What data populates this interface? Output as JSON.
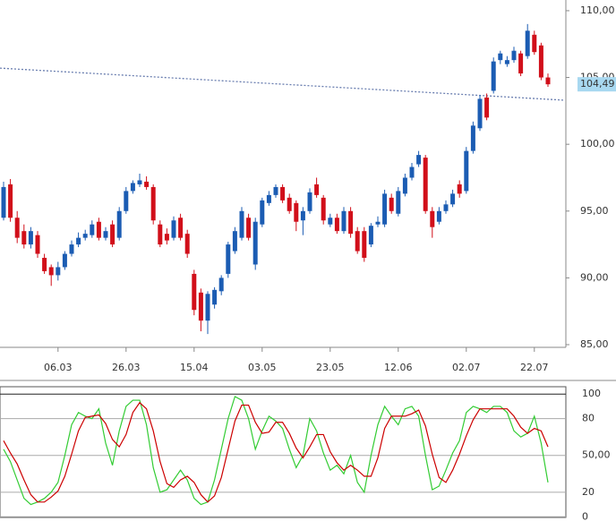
{
  "chart_data": [
    {
      "type": "candlestick",
      "categories": [
        null,
        null,
        null,
        null,
        null,
        null,
        null,
        null,
        "06.03",
        null,
        null,
        null,
        null,
        null,
        null,
        null,
        null,
        null,
        "26.03",
        null,
        null,
        null,
        null,
        null,
        null,
        null,
        null,
        null,
        "15.04",
        null,
        null,
        null,
        null,
        null,
        null,
        null,
        null,
        null,
        "03.05",
        null,
        null,
        null,
        null,
        null,
        null,
        null,
        null,
        null,
        "23.05",
        null,
        null,
        null,
        null,
        null,
        null,
        null,
        null,
        null,
        "12.06",
        null,
        null,
        null,
        null,
        null,
        null,
        null,
        null,
        null,
        "02.07",
        null,
        null,
        null,
        null,
        null,
        null,
        null,
        null,
        null,
        "22.07",
        null,
        null
      ],
      "open": [
        94.5,
        97,
        94.5,
        93.5,
        92.5,
        93.2,
        91.5,
        90.8,
        90.2,
        90.8,
        91.8,
        92.5,
        93,
        93.2,
        94.2,
        93,
        94,
        93,
        95,
        96.5,
        97,
        97.2,
        96.8,
        94,
        93.3,
        93,
        94.5,
        93.3,
        90.3,
        88.9,
        86.8,
        88,
        89,
        90.3,
        92,
        93,
        94.5,
        91,
        94,
        95.6,
        96.2,
        96.8,
        96,
        95.6,
        94.3,
        95,
        97,
        96,
        94,
        94.5,
        93.5,
        95,
        93.5,
        93.5,
        92.5,
        94,
        94,
        96,
        94.8,
        96.3,
        97.5,
        98.5,
        99,
        95,
        94.2,
        95,
        95.5,
        97,
        96.5,
        99.5,
        101.2,
        103.5,
        104,
        106.3,
        106,
        106.3,
        106.8,
        106.6,
        108.2,
        107.4,
        105
      ],
      "high": [
        97.2,
        97.4,
        95,
        94,
        93.8,
        93.5,
        91.8,
        91,
        91.2,
        92,
        92.8,
        93.4,
        93.6,
        94.3,
        94.5,
        93.8,
        94.3,
        95.3,
        96.8,
        97.3,
        97.8,
        97.6,
        97,
        94.3,
        93.7,
        94.6,
        94.8,
        93.6,
        90.6,
        89.2,
        89,
        89.3,
        90.2,
        92.7,
        93.8,
        95.3,
        94.8,
        94.5,
        96,
        96.5,
        97,
        97,
        96.3,
        95.8,
        95.3,
        96.7,
        97.5,
        96.2,
        94.8,
        94.8,
        95.3,
        95.3,
        93.8,
        93.8,
        94.1,
        94.6,
        96.6,
        96.3,
        96.8,
        97.8,
        98.6,
        99.5,
        99.2,
        95.3,
        95.3,
        95.8,
        96.6,
        97.3,
        99.8,
        101.7,
        103.7,
        103.8,
        106.5,
        107,
        106.6,
        107.3,
        107,
        109,
        108.5,
        107.6,
        105.3
      ],
      "low": [
        94.3,
        94.2,
        92.6,
        92.2,
        92.2,
        91.5,
        90.3,
        89.4,
        89.8,
        90.6,
        91.6,
        92.3,
        92.8,
        93,
        92.8,
        92.8,
        92.3,
        92.8,
        94.8,
        96.3,
        96.8,
        96.6,
        94,
        92.3,
        92.5,
        92.8,
        92.8,
        91.5,
        87.2,
        86,
        85.8,
        87.7,
        88.7,
        90,
        91.8,
        92.8,
        92.8,
        90.6,
        93.8,
        95.4,
        96,
        95.6,
        94.8,
        93.5,
        93.2,
        94.8,
        96,
        94,
        93.8,
        93.3,
        93.3,
        93,
        91.8,
        91.2,
        92.3,
        93.8,
        93.8,
        94.8,
        94.6,
        96.1,
        97.3,
        98.3,
        94.8,
        93,
        94,
        94.8,
        95.3,
        96,
        96.3,
        99.3,
        101,
        101.8,
        103.8,
        106,
        105.8,
        106.1,
        105.1,
        106.4,
        106.7,
        104.8,
        104.3
      ],
      "close": [
        96.8,
        94.5,
        93,
        92.5,
        93.5,
        91.8,
        90.5,
        90.2,
        90.8,
        91.8,
        92.5,
        93,
        93.3,
        94,
        93,
        93.5,
        92.5,
        95,
        96.5,
        97.1,
        97.3,
        96.8,
        94.3,
        92.5,
        92.8,
        94.3,
        93,
        91.8,
        87.6,
        86.8,
        88.8,
        89.1,
        90,
        92.5,
        93.5,
        95,
        93,
        94.2,
        95.8,
        96.2,
        96.8,
        95.8,
        95,
        94.2,
        95,
        96.4,
        96.2,
        94.3,
        94.5,
        93.5,
        95,
        93.3,
        92,
        91.5,
        93.9,
        94.2,
        96.3,
        95,
        96.5,
        97.5,
        98.3,
        99.2,
        95,
        93.8,
        95,
        95.5,
        96.3,
        96.3,
        99.5,
        101.4,
        103.4,
        102,
        106.2,
        106.8,
        106.3,
        107,
        105.3,
        108.5,
        106.9,
        105,
        104.49
      ],
      "up_color": "#1b5cb3",
      "down_color": "#d10f1a",
      "trendline": [
        105.7,
        103.3
      ],
      "trendline_color": "#6b7fb0",
      "last_price": {
        "value": 104.49,
        "label": "104,49"
      },
      "ylim": [
        84.8,
        110.8
      ],
      "yticks": [
        {
          "value": 110,
          "label": "110,00"
        },
        {
          "value": 105,
          "label": "105,00"
        },
        {
          "value": 100,
          "label": "100,00"
        },
        {
          "value": 95,
          "label": "95,00"
        },
        {
          "value": 90,
          "label": "90,00"
        },
        {
          "value": 85,
          "label": "85,00"
        }
      ]
    },
    {
      "type": "line",
      "series": [
        {
          "color": "#33cc33",
          "values": [
            55,
            45,
            30,
            15,
            10,
            12,
            15,
            20,
            28,
            50,
            75,
            85,
            82,
            80,
            88,
            60,
            42,
            70,
            90,
            95,
            95,
            75,
            40,
            20,
            22,
            30,
            38,
            30,
            15,
            10,
            12,
            30,
            55,
            80,
            98,
            95,
            80,
            55,
            70,
            82,
            78,
            72,
            55,
            40,
            50,
            80,
            70,
            52,
            38,
            42,
            35,
            50,
            28,
            20,
            50,
            75,
            90,
            82,
            75,
            88,
            90,
            82,
            50,
            22,
            25,
            38,
            52,
            62,
            85,
            90,
            88,
            85,
            90,
            90,
            85,
            70,
            65,
            68,
            82,
            60,
            28
          ]
        },
        {
          "color": "#cc0000",
          "values": [
            62,
            52,
            43,
            30,
            18,
            12,
            12,
            16,
            21,
            33,
            51,
            70,
            81,
            82,
            83,
            76,
            63,
            57,
            67,
            85,
            93,
            88,
            70,
            45,
            27,
            24,
            30,
            33,
            28,
            18,
            12,
            17,
            32,
            55,
            78,
            91,
            91,
            77,
            68,
            69,
            77,
            77,
            68,
            56,
            48,
            57,
            67,
            67,
            53,
            44,
            38,
            42,
            38,
            33,
            33,
            48,
            72,
            82,
            82,
            82,
            84,
            87,
            74,
            51,
            32,
            28,
            38,
            51,
            66,
            79,
            88,
            88,
            88,
            88,
            88,
            82,
            73,
            68,
            72,
            70,
            57
          ]
        }
      ],
      "ylim": [
        -2,
        106
      ],
      "yticks": [
        100,
        80,
        {
          "value": 50,
          "label": "50,00"
        },
        20,
        0
      ]
    }
  ]
}
